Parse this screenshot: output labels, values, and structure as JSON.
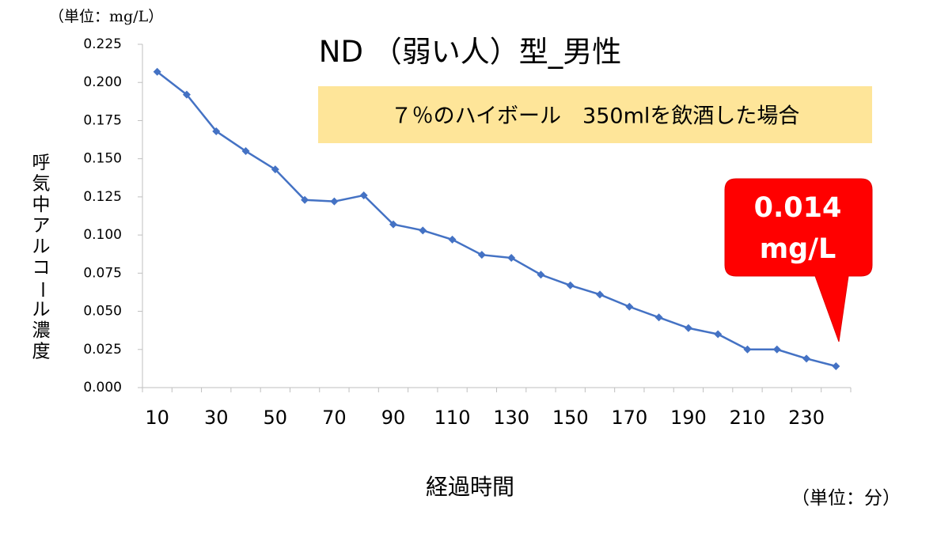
{
  "chart_data": {
    "type": "line",
    "title": "ND （弱い人）型_男性",
    "subtitle": "７％のハイボール　350mlを飲酒した場合",
    "ylabel": "呼気中アルコール濃度",
    "ylabel_chars": [
      "呼",
      "気",
      "中",
      "ア",
      "ル",
      "コ",
      "ー",
      "ル",
      "濃",
      "度"
    ],
    "xlabel": "経過時間",
    "y_unit": "（単位：mg/L）",
    "x_unit": "（単位：分）",
    "callout": {
      "value": "0.014",
      "unit": "mg/L"
    },
    "ylim": [
      0,
      0.225
    ],
    "y_ticks": [
      "0.000",
      "0.025",
      "0.050",
      "0.075",
      "0.100",
      "0.125",
      "0.150",
      "0.175",
      "0.200",
      "0.225"
    ],
    "x": [
      10,
      20,
      30,
      40,
      50,
      60,
      70,
      80,
      90,
      100,
      110,
      120,
      130,
      140,
      150,
      160,
      170,
      180,
      190,
      200,
      210,
      220,
      230,
      240
    ],
    "x_tick_labels": [
      "10",
      "30",
      "50",
      "70",
      "90",
      "110",
      "130",
      "150",
      "170",
      "190",
      "210",
      "230"
    ],
    "values": [
      0.207,
      0.192,
      0.168,
      0.155,
      0.143,
      0.123,
      0.122,
      0.126,
      0.107,
      0.103,
      0.097,
      0.087,
      0.085,
      0.074,
      0.067,
      0.061,
      0.053,
      0.046,
      0.039,
      0.035,
      0.025,
      0.025,
      0.019,
      0.014
    ],
    "grid": false,
    "legend": "none",
    "series_color": "#4472c4",
    "callout_color": "#ff0000",
    "subtitle_bg": "#fee599"
  }
}
